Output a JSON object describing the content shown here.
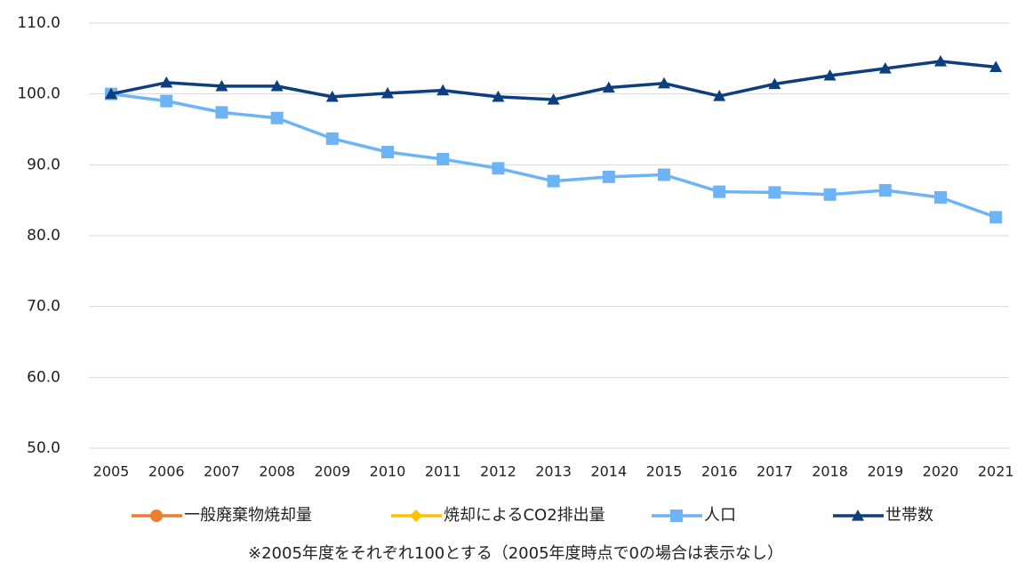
{
  "chart_data": {
    "type": "line",
    "categories": [
      "2005",
      "2006",
      "2007",
      "2008",
      "2009",
      "2010",
      "2011",
      "2012",
      "2013",
      "2014",
      "2015",
      "2016",
      "2017",
      "2018",
      "2019",
      "2020",
      "2021"
    ],
    "series": [
      {
        "name": "一般廃棄物焼却量",
        "color": "#ed7d31",
        "marker": "circle",
        "values": [
          null,
          null,
          null,
          null,
          null,
          null,
          null,
          null,
          null,
          null,
          null,
          null,
          null,
          null,
          null,
          null,
          null
        ]
      },
      {
        "name": "焼却によるCO2排出量",
        "color": "#ffc000",
        "marker": "diamond",
        "values": [
          null,
          null,
          null,
          null,
          null,
          null,
          null,
          null,
          null,
          null,
          null,
          null,
          null,
          null,
          null,
          null,
          null
        ]
      },
      {
        "name": "人口",
        "color": "#6cb4f5",
        "marker": "square",
        "values": [
          100.0,
          99.0,
          97.4,
          96.6,
          93.7,
          91.8,
          90.8,
          89.5,
          87.7,
          88.3,
          88.6,
          86.2,
          86.1,
          85.8,
          86.4,
          85.4,
          82.6
        ]
      },
      {
        "name": "世帯数",
        "color": "#0d3f7e",
        "marker": "triangle",
        "values": [
          100.0,
          101.6,
          101.1,
          101.1,
          99.6,
          100.1,
          100.5,
          99.6,
          99.2,
          100.9,
          101.5,
          99.7,
          101.4,
          102.6,
          103.6,
          104.6,
          103.8
        ]
      }
    ],
    "ylim": [
      50,
      110
    ],
    "yticks": [
      {
        "value": 50,
        "label": "50.0"
      },
      {
        "value": 60,
        "label": "60.0"
      },
      {
        "value": 70,
        "label": "70.0"
      },
      {
        "value": 80,
        "label": "80.0"
      },
      {
        "value": 90,
        "label": "90.0"
      },
      {
        "value": 100,
        "label": "100.0"
      },
      {
        "value": 110,
        "label": "110.0"
      }
    ],
    "grid": true,
    "legend": "bottom",
    "note": "※2005年度をそれぞれ100とする（2005年度時点で0の場合は表示なし）"
  }
}
